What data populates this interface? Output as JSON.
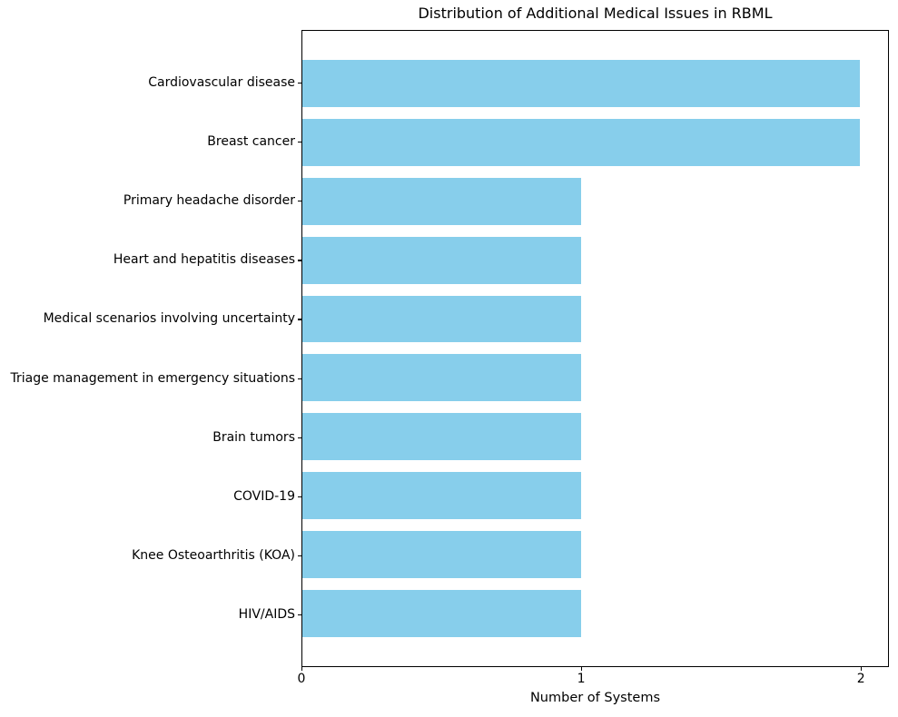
{
  "chart_data": {
    "type": "bar",
    "orientation": "horizontal",
    "title": "Distribution of Additional Medical Issues in RBML",
    "xlabel": "Number of Systems",
    "ylabel": "",
    "categories": [
      "Cardiovascular disease",
      "Breast cancer",
      "Primary headache disorder",
      "Heart and hepatitis diseases",
      "Medical scenarios involving uncertainty",
      "Triage management in emergency situations",
      "Brain tumors",
      "COVID-19",
      "Knee Osteoarthritis (KOA)",
      "HIV/AIDS"
    ],
    "values": [
      2,
      2,
      1,
      1,
      1,
      1,
      1,
      1,
      1,
      1
    ],
    "xticks": [
      0,
      1,
      2
    ],
    "xlim": [
      0,
      2.1
    ],
    "ylim_units_span": 10.78,
    "y_top_pad_units": 0.89,
    "bar_height_units": 0.8,
    "bar_color": "#87CEEB",
    "axis_color": "#000000",
    "background_color": "#ffffff",
    "grid": false,
    "legend": "none"
  }
}
